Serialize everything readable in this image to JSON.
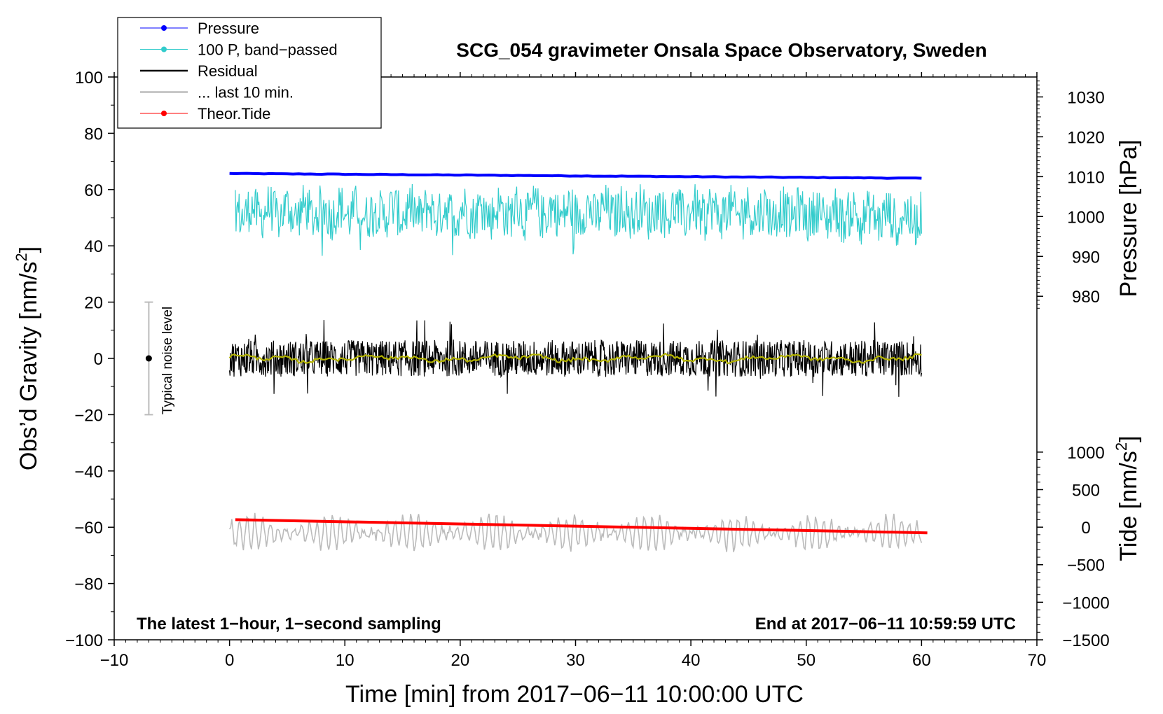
{
  "chart_data": {
    "type": "line",
    "title": "SCG_054 gravimeter Onsala Space Observatory, Sweden",
    "xlabel": "Time [min] from 2017−06−11 10:00:00 UTC",
    "ylabel_left_main": "Obs’d Gravity [nm/s",
    "ylabel_left_sup": "2",
    "ylabel_left_end": "]",
    "ylabel_right_pressure": "Pressure [hPa]",
    "ylabel_right_tide_main": "Tide [nm/s",
    "ylabel_right_tide_sup": "2",
    "ylabel_right_tide_end": "]",
    "xlim": [
      -10,
      70
    ],
    "ylim": [
      -100,
      100
    ],
    "x_ticks": [
      -10,
      0,
      10,
      20,
      30,
      40,
      50,
      60,
      70
    ],
    "x_tick_labels": [
      "−10",
      "0",
      "10",
      "20",
      "30",
      "40",
      "50",
      "60",
      "70"
    ],
    "y_ticks": [
      -100,
      -80,
      -60,
      -40,
      -20,
      0,
      20,
      40,
      60,
      80,
      100
    ],
    "y_tick_labels": [
      "−100",
      "−80",
      "−60",
      "−40",
      "−20",
      "0",
      "20",
      "40",
      "60",
      "80",
      "100"
    ],
    "pressure_axis": {
      "ticks": [
        980,
        990,
        1000,
        1010,
        1020,
        1030
      ],
      "tick_labels": [
        "980",
        "990",
        "1000",
        "1010",
        "1020",
        "1030"
      ],
      "value_range": [
        975,
        1035
      ],
      "plot_y_range": [
        15,
        100
      ]
    },
    "tide_axis": {
      "ticks": [
        -1500,
        -1000,
        -500,
        0,
        500,
        1000
      ],
      "tick_labels": [
        "−1500",
        "−1000",
        "−500",
        "0",
        "500",
        "1000"
      ],
      "value_range": [
        -1500,
        1000
      ],
      "plot_y_range": [
        -100,
        -33.3
      ]
    },
    "legend": [
      {
        "label": "Pressure",
        "color": "#0000ff",
        "marker": true
      },
      {
        "label": "100 P, band−passed",
        "color": "#33cccc",
        "marker": true
      },
      {
        "label": "Residual",
        "color": "#000000",
        "marker": false
      },
      {
        "label": "... last 10 min.",
        "color": "#bbbbbb",
        "marker": false
      },
      {
        "label": "Theor.Tide",
        "color": "#ff0000",
        "marker": true
      }
    ],
    "annotations": {
      "left": "The latest 1−hour, 1−second sampling",
      "right": "End at 2017−06−11 10:59:59 UTC",
      "noise": "Typical noise level"
    },
    "noise_bar": {
      "x": -7,
      "y_center": 0,
      "y_low": -20,
      "y_high": 20
    },
    "series": [
      {
        "name": "Pressure",
        "color": "#0000ff",
        "unit": "hPa",
        "x_range": [
          0,
          60
        ],
        "start_value": 1010.8,
        "end_value": 1009.6
      },
      {
        "name": "100 P, band−passed",
        "color": "#33cccc",
        "unit": "plot",
        "x_range": [
          0.5,
          60
        ],
        "mean": 52,
        "amplitude": 6
      },
      {
        "name": "Residual",
        "color": "#000000",
        "unit": "plot",
        "x_range": [
          0,
          60
        ],
        "mean": 0,
        "amplitude": 5
      },
      {
        "name": "Residual smoothed",
        "color": "#b3b300",
        "unit": "plot",
        "x_range": [
          0,
          60
        ],
        "mean": 0,
        "amplitude": 1
      },
      {
        "name": "... last 10 min.",
        "color": "#bbbbbb",
        "unit": "plot",
        "x_range": [
          0,
          60
        ],
        "mean": -62,
        "amplitude": 6
      },
      {
        "name": "Theor.Tide",
        "color": "#ff0000",
        "unit": "nm/s2",
        "x_range": [
          0.5,
          60.5
        ],
        "start_value": 100,
        "end_value": -75
      }
    ]
  }
}
